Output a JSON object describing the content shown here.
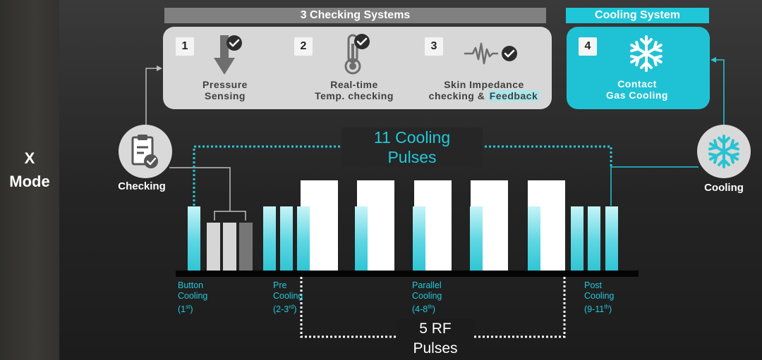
{
  "mode": {
    "line1": "X",
    "line2": "Mode"
  },
  "checking_systems": {
    "header": "3 Checking Systems",
    "items": [
      {
        "num": "1",
        "line1": "Pressure",
        "line2": "Sensing",
        "icon": "pressure-arrow-icon"
      },
      {
        "num": "2",
        "line1": "Real-time",
        "line2": "Temp. checking",
        "icon": "thermometer-icon"
      },
      {
        "num": "3",
        "line1": "Skin Impedance",
        "line2a": "checking & ",
        "line2b": "Feedback",
        "icon": "waveform-icon"
      }
    ]
  },
  "cooling_system": {
    "header": "Cooling System",
    "num": "4",
    "line1": "Contact",
    "line2": "Gas Cooling",
    "icon": "snowflake-icon"
  },
  "side_labels": {
    "checking": "Checking",
    "cooling": "Cooling"
  },
  "pulses": {
    "cooling_line1": "11 Cooling",
    "cooling_line2": "Pulses",
    "rf_line1": "5 RF",
    "rf_line2": "Pulses"
  },
  "phases": [
    {
      "l1": "Button",
      "l2": "Cooling",
      "l3": "(1",
      "sup": "st",
      "end": ")"
    },
    {
      "l1": "Pre",
      "l2": "Cooling",
      "l3": "(2-3",
      "sup": "rd",
      "end": ")"
    },
    {
      "l1": "Parallel",
      "l2": "Cooling",
      "l3": "(4-8",
      "sup": "th",
      "end": ")"
    },
    {
      "l1": "Post",
      "l2": "Cooling",
      "l3": "(9-11",
      "sup": "th",
      "end": ")"
    }
  ],
  "colors": {
    "accent": "#1ec6d8",
    "panel_gray": "#d7d7d7",
    "header_gray": "#808080"
  }
}
